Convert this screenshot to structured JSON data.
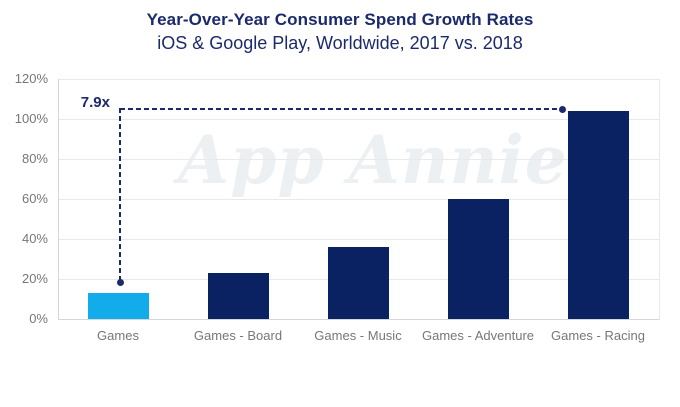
{
  "header": {
    "title": "Year-Over-Year Consumer Spend Growth Rates",
    "subtitle": "iOS & Google Play, Worldwide, 2017 vs. 2018"
  },
  "watermark": "App Annie.",
  "annotation": {
    "label": "7.9x"
  },
  "colors": {
    "heading_navy": "#1B2A6B",
    "bar_default": "#0B2262",
    "bar_highlight": "#12ACEA",
    "axis_label_gray": "#76777B",
    "gridline": "#E8E9EB",
    "axis_line": "#D6D7DA",
    "watermark_gray": "#EDF0F3",
    "annotation_navy": "#1B2A6B"
  },
  "chart_data": {
    "type": "bar",
    "title": "Year-Over-Year Consumer Spend Growth Rates",
    "subtitle": "iOS & Google Play, Worldwide, 2017 vs. 2018",
    "categories": [
      "Games",
      "Games - Board",
      "Games - Music",
      "Games - Adventure",
      "Games - Racing"
    ],
    "values": [
      13,
      23,
      36,
      60,
      104
    ],
    "highlight_index": 0,
    "annotation_label": "7.9x",
    "xlabel": "",
    "ylabel": "",
    "yticks": [
      "0%",
      "20%",
      "40%",
      "60%",
      "80%",
      "100%",
      "120%"
    ],
    "ylim": [
      0,
      120
    ],
    "grid": true,
    "legend": false
  }
}
